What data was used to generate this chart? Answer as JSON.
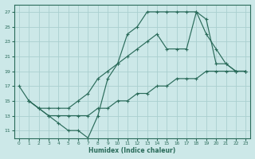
{
  "xlabel": "Humidex (Indice chaleur)",
  "bg_color": "#cce8e8",
  "grid_color": "#aacfcf",
  "line_color": "#2a6b5a",
  "xlim": [
    -0.5,
    23.5
  ],
  "ylim": [
    10.0,
    28.0
  ],
  "xticks": [
    0,
    1,
    2,
    3,
    4,
    5,
    6,
    7,
    8,
    9,
    10,
    11,
    12,
    13,
    14,
    15,
    16,
    17,
    18,
    19,
    20,
    21,
    22,
    23
  ],
  "yticks": [
    11,
    13,
    15,
    17,
    19,
    21,
    23,
    25,
    27
  ],
  "curve1": {
    "x": [
      0,
      1,
      2,
      3,
      4,
      5,
      6,
      7,
      8,
      9,
      10,
      11,
      12,
      13,
      14,
      15,
      16,
      17,
      18,
      19,
      20,
      21,
      22,
      23
    ],
    "y": [
      17,
      15,
      14,
      13,
      12,
      11,
      11,
      10,
      13,
      18,
      20,
      24,
      25,
      27,
      27,
      27,
      27,
      27,
      27,
      26,
      20,
      20,
      19,
      19
    ]
  },
  "curve2": {
    "x": [
      1,
      2,
      3,
      4,
      5,
      6,
      7,
      8,
      9,
      10,
      11,
      12,
      13,
      14,
      15,
      16,
      17,
      18,
      19,
      20,
      21,
      22,
      23
    ],
    "y": [
      15,
      14,
      14,
      14,
      14,
      15,
      16,
      18,
      19,
      20,
      21,
      22,
      23,
      24,
      22,
      22,
      22,
      27,
      24,
      22,
      20,
      19,
      19
    ]
  },
  "curve3": {
    "x": [
      1,
      2,
      3,
      4,
      5,
      6,
      7,
      8,
      9,
      10,
      11,
      12,
      13,
      14,
      15,
      16,
      17,
      18,
      19,
      20,
      21,
      22,
      23
    ],
    "y": [
      15,
      14,
      13,
      13,
      13,
      13,
      13,
      14,
      14,
      15,
      15,
      16,
      16,
      17,
      17,
      18,
      18,
      18,
      19,
      19,
      19,
      19,
      19
    ]
  }
}
